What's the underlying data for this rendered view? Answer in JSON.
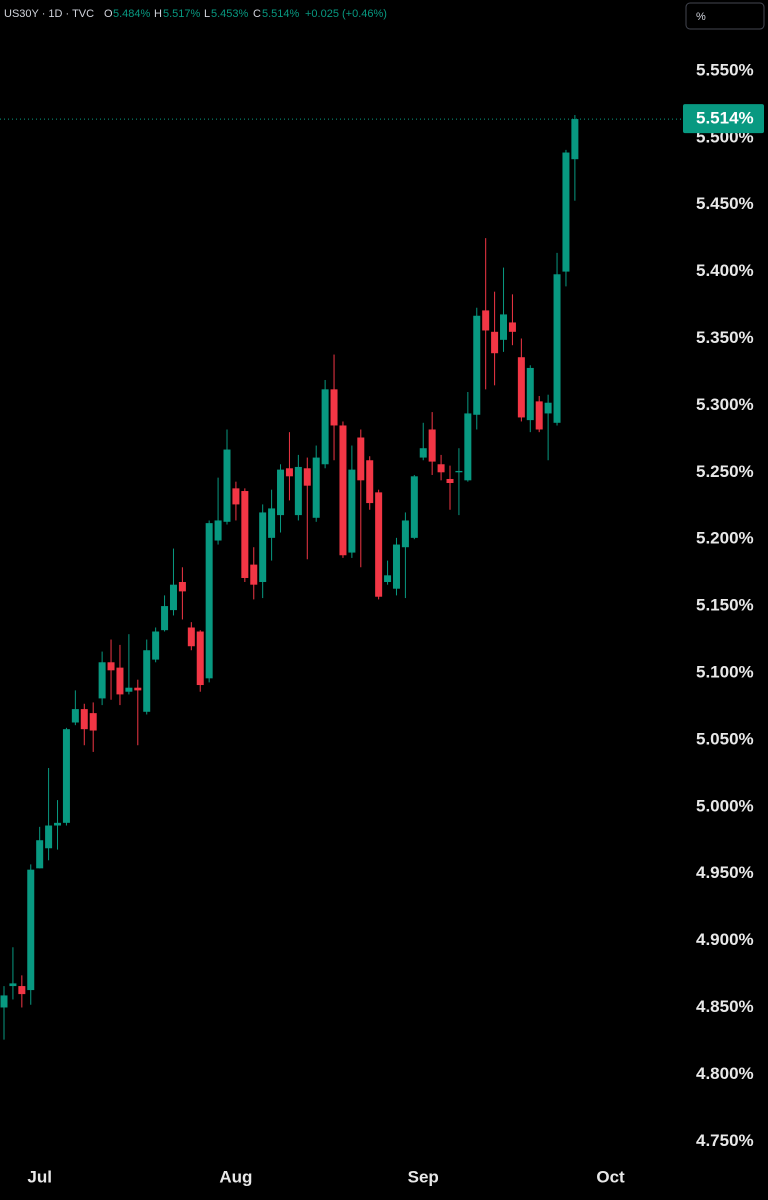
{
  "header": {
    "symbol": "US30Y · 1D · TVC",
    "open_key": "O",
    "open": "5.484%",
    "high_key": "H",
    "high": "5.517%",
    "low_key": "L",
    "low": "5.453%",
    "close_key": "C",
    "close": "5.514%",
    "change": "+0.025 (+0.46%)",
    "unit_button": "%"
  },
  "chart_data": {
    "type": "candlestick",
    "categories": [
      null,
      null,
      null,
      null,
      "Jul",
      null,
      null,
      null,
      null,
      null,
      null,
      null,
      null,
      null,
      null,
      null,
      null,
      null,
      null,
      null,
      null,
      null,
      null,
      null,
      null,
      null,
      "Aug",
      null,
      null,
      null,
      null,
      null,
      null,
      null,
      null,
      null,
      null,
      null,
      null,
      null,
      null,
      null,
      null,
      null,
      null,
      null,
      null,
      "Sep",
      null,
      null,
      null,
      null,
      null,
      null,
      null,
      null,
      null,
      null,
      null,
      null,
      null,
      null,
      null,
      null,
      null,
      null,
      null,
      null,
      "Oct"
    ],
    "open": [
      4.85,
      4.866,
      4.866,
      4.863,
      4.954,
      4.969,
      4.986,
      4.988,
      5.063,
      5.073,
      5.07,
      5.081,
      5.108,
      5.104,
      5.086,
      5.089,
      5.071,
      5.11,
      5.132,
      5.147,
      5.168,
      5.134,
      5.131,
      5.096,
      5.199,
      5.213,
      5.238,
      5.236,
      5.181,
      5.168,
      5.201,
      5.218,
      5.253,
      5.218,
      5.253,
      5.216,
      5.256,
      5.312,
      5.285,
      5.19,
      5.276,
      5.259,
      5.235,
      5.168,
      5.163,
      5.194,
      5.201,
      5.261,
      5.282,
      5.256,
      5.245,
      5.25,
      5.244,
      5.293,
      5.371,
      5.355,
      5.349,
      5.362,
      5.336,
      5.289,
      5.303,
      5.294,
      5.287,
      5.4,
      5.484,
      null,
      null,
      null,
      null
    ],
    "high": [
      4.866,
      4.895,
      4.874,
      4.957,
      4.985,
      5.029,
      5.005,
      5.059,
      5.087,
      5.077,
      5.078,
      5.116,
      5.125,
      5.121,
      5.129,
      5.095,
      5.125,
      5.134,
      5.158,
      5.193,
      5.179,
      5.138,
      5.132,
      5.214,
      5.246,
      5.282,
      5.243,
      5.238,
      5.194,
      5.226,
      5.237,
      5.256,
      5.28,
      5.263,
      5.261,
      5.27,
      5.319,
      5.338,
      5.288,
      5.27,
      5.282,
      5.262,
      5.237,
      5.184,
      5.201,
      5.22,
      5.248,
      5.287,
      5.295,
      5.263,
      5.255,
      5.268,
      5.31,
      5.373,
      5.425,
      5.385,
      5.403,
      5.383,
      5.35,
      5.33,
      5.307,
      5.308,
      5.414,
      5.491,
      5.517,
      null,
      null,
      null,
      null
    ],
    "low": [
      4.826,
      4.856,
      4.85,
      4.852,
      4.954,
      4.96,
      4.968,
      4.986,
      5.061,
      5.046,
      5.041,
      5.076,
      5.08,
      5.076,
      5.084,
      5.046,
      5.069,
      5.108,
      5.131,
      5.143,
      5.14,
      5.117,
      5.086,
      5.093,
      5.196,
      5.211,
      5.214,
      5.168,
      5.155,
      5.156,
      5.184,
      5.205,
      5.229,
      5.214,
      5.185,
      5.213,
      5.253,
      5.259,
      5.186,
      5.186,
      5.179,
      5.222,
      5.155,
      5.166,
      5.158,
      5.156,
      5.2,
      5.259,
      5.248,
      5.244,
      5.222,
      5.218,
      5.243,
      5.282,
      5.312,
      5.315,
      5.34,
      5.345,
      5.288,
      5.28,
      5.28,
      5.259,
      5.285,
      5.389,
      5.453,
      null,
      null,
      null,
      null
    ],
    "close": [
      4.859,
      4.868,
      4.86,
      4.953,
      4.975,
      4.986,
      4.988,
      5.058,
      5.073,
      5.058,
      5.057,
      5.108,
      5.102,
      5.084,
      5.089,
      5.087,
      5.117,
      5.131,
      5.15,
      5.166,
      5.161,
      5.12,
      5.091,
      5.212,
      5.214,
      5.267,
      5.226,
      5.171,
      5.166,
      5.22,
      5.223,
      5.252,
      5.247,
      5.254,
      5.24,
      5.261,
      5.312,
      5.285,
      5.188,
      5.252,
      5.244,
      5.227,
      5.157,
      5.173,
      5.196,
      5.214,
      5.247,
      5.268,
      5.258,
      5.25,
      5.242,
      5.251,
      5.294,
      5.367,
      5.356,
      5.339,
      5.368,
      5.355,
      5.291,
      5.328,
      5.282,
      5.302,
      5.398,
      5.489,
      5.514,
      null,
      null,
      null,
      null
    ],
    "up_color": "#089981",
    "down_color": "#f23645",
    "ylim": [
      4.736,
      5.603
    ],
    "yticks": [
      {
        "value": 4.75,
        "label": "4.750%"
      },
      {
        "value": 4.8,
        "label": "4.800%"
      },
      {
        "value": 4.85,
        "label": "4.850%"
      },
      {
        "value": 4.9,
        "label": "4.900%"
      },
      {
        "value": 4.95,
        "label": "4.950%"
      },
      {
        "value": 5.0,
        "label": "5.000%"
      },
      {
        "value": 5.05,
        "label": "5.050%"
      },
      {
        "value": 5.1,
        "label": "5.100%"
      },
      {
        "value": 5.15,
        "label": "5.150%"
      },
      {
        "value": 5.2,
        "label": "5.200%"
      },
      {
        "value": 5.25,
        "label": "5.250%"
      },
      {
        "value": 5.3,
        "label": "5.300%"
      },
      {
        "value": 5.35,
        "label": "5.350%"
      },
      {
        "value": 5.4,
        "label": "5.400%"
      },
      {
        "value": 5.45,
        "label": "5.450%"
      },
      {
        "value": 5.5,
        "label": "5.500%"
      },
      {
        "value": 5.55,
        "label": "5.550%"
      }
    ],
    "grid": false,
    "last_price": {
      "value": 5.514,
      "label": "5.514%"
    }
  }
}
